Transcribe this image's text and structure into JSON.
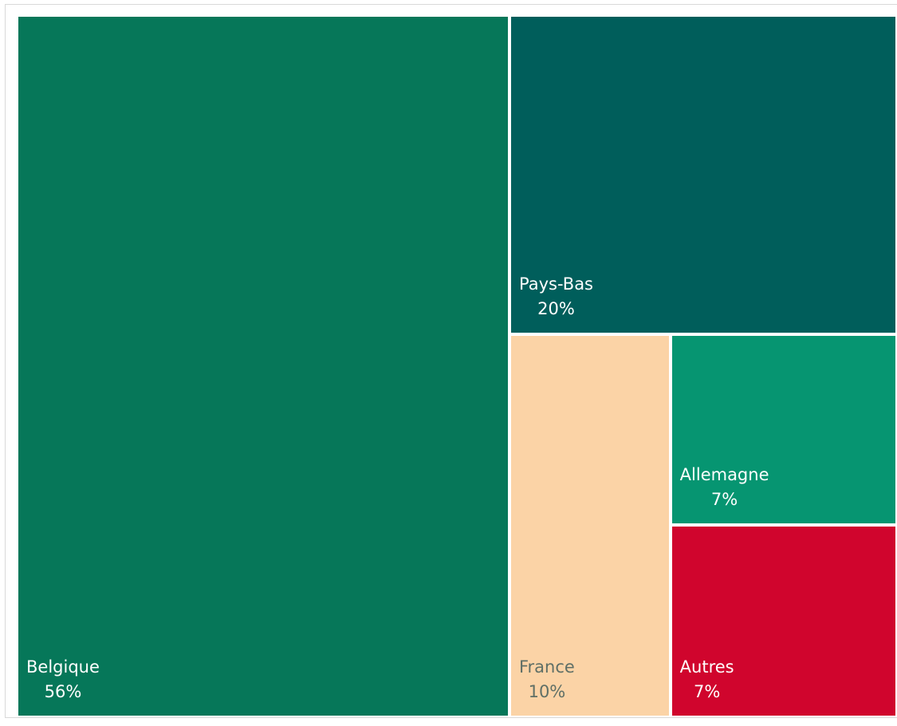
{
  "chart_data": {
    "type": "treemap",
    "title": "",
    "items": [
      {
        "label": "Belgique",
        "value": 56,
        "value_label": "56%",
        "color": "#067759"
      },
      {
        "label": "Pays-Bas",
        "value": 20,
        "value_label": "20%",
        "color": "#005e5b"
      },
      {
        "label": "France",
        "value": 10,
        "value_label": "10%",
        "color": "#fbd3a6"
      },
      {
        "label": "Allemagne",
        "value": 7,
        "value_label": "7%",
        "color": "#069571"
      },
      {
        "label": "Autres",
        "value": 7,
        "value_label": "7%",
        "color": "#d0052d"
      }
    ]
  }
}
